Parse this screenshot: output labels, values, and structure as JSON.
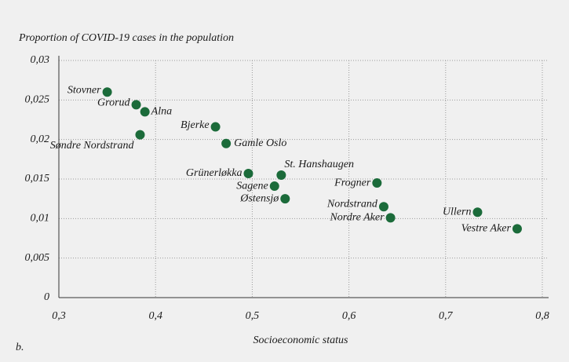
{
  "chart_data": {
    "type": "scatter",
    "title": "Proportion of COVID-19 cases in the population",
    "x_label": "Socioeconomic status",
    "panel_label": "b.",
    "color": "#1b6b3a",
    "grid": true,
    "labels": [
      "Stovner",
      "Grorud",
      "Alna",
      "Søndre Nordstrand",
      "Bjerke",
      "Gamle Oslo",
      "Grünerløkka",
      "St. Hanshaugen",
      "Sagene",
      "Østensjø",
      "Frogner",
      "Nordstrand",
      "Nordre Aker",
      "Ullern",
      "Vestre Aker"
    ],
    "x": [
      0.35,
      0.38,
      0.389,
      0.384,
      0.462,
      0.473,
      0.496,
      0.53,
      0.523,
      0.534,
      0.629,
      0.636,
      0.643,
      0.733,
      0.774
    ],
    "values": [
      0.026,
      0.0244,
      0.0235,
      0.0206,
      0.0216,
      0.0195,
      0.0157,
      0.0155,
      0.0141,
      0.0125,
      0.0145,
      0.0115,
      0.0101,
      0.0108,
      0.0087
    ],
    "xlim": [
      0.3,
      0.8
    ],
    "ylim": [
      0,
      0.03
    ],
    "xticks": [
      {
        "value": 0.3,
        "label": "0,3"
      },
      {
        "value": 0.4,
        "label": "0,4"
      },
      {
        "value": 0.5,
        "label": "0,5"
      },
      {
        "value": 0.6,
        "label": "0,6"
      },
      {
        "value": 0.7,
        "label": "0,7"
      },
      {
        "value": 0.8,
        "label": "0,8"
      }
    ],
    "yticks": [
      0,
      {
        "value": 0.005,
        "label": "0,005"
      },
      {
        "value": 0.01,
        "label": "0,01"
      },
      {
        "value": 0.015,
        "label": "0,015"
      },
      {
        "value": 0.02,
        "label": "0,02"
      },
      {
        "value": 0.025,
        "label": "0,025"
      },
      {
        "value": 0.03,
        "label": "0,03"
      }
    ]
  }
}
